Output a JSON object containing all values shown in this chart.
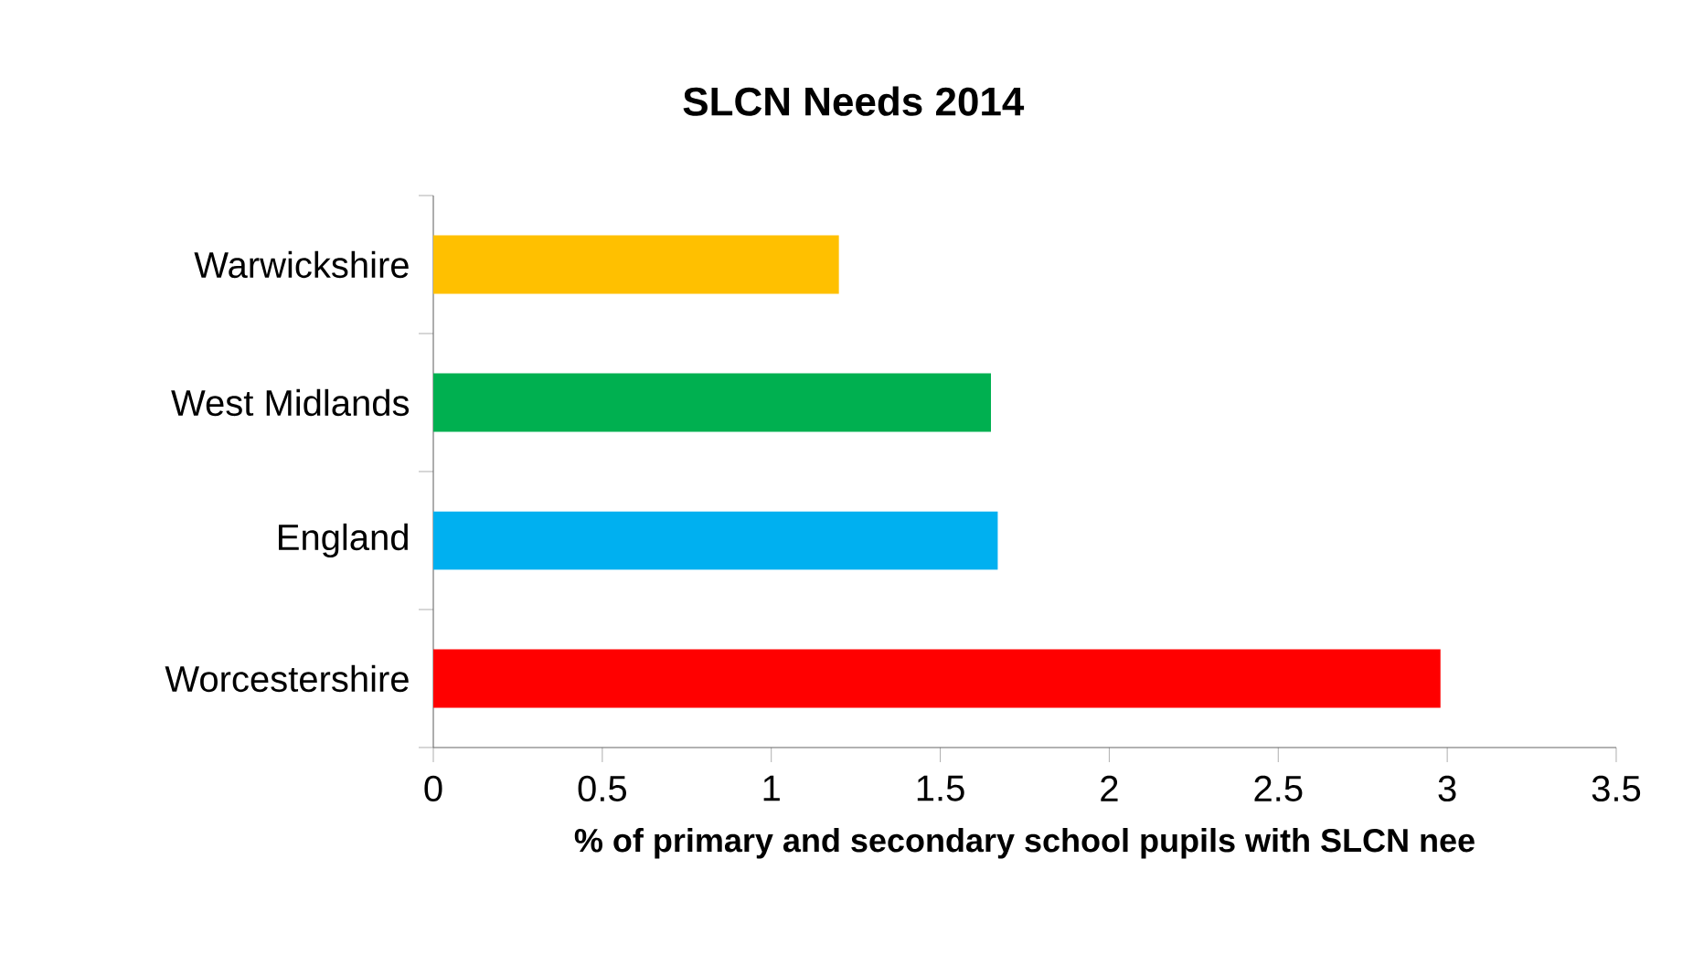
{
  "chart_data": {
    "type": "bar",
    "orientation": "horizontal",
    "title": "SLCN Needs 2014",
    "xlabel": "% of primary and secondary school pupils with SLCN nee",
    "categories": [
      "Warwickshire",
      "West Midlands",
      "England",
      "Worcestershire"
    ],
    "values": [
      1.2,
      1.65,
      1.67,
      2.98
    ],
    "colors": [
      "#ffc000",
      "#00b050",
      "#00b0f0",
      "#ff0000"
    ],
    "xlim": [
      0,
      3.5
    ],
    "xticks": [
      0,
      0.5,
      1,
      1.5,
      2,
      2.5,
      3,
      3.5
    ],
    "grid": false
  }
}
